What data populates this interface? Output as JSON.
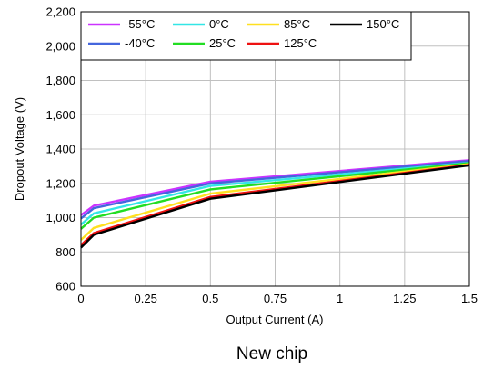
{
  "chart_data": {
    "type": "line",
    "xlabel": "Output Current (A)",
    "ylabel": "Dropout Voltage (V)",
    "caption": "New chip",
    "xlim": [
      0,
      1.5
    ],
    "ylim": [
      600,
      2200
    ],
    "x_ticks": [
      0,
      0.25,
      0.5,
      0.75,
      1,
      1.25,
      1.5
    ],
    "x_tick_labels": [
      "0",
      "0.25",
      "0.5",
      "0.75",
      "1",
      "1.25",
      "1.5"
    ],
    "y_ticks": [
      600,
      800,
      1000,
      1200,
      1400,
      1600,
      1800,
      2000,
      2200
    ],
    "y_tick_labels": [
      "600",
      "800",
      "1,000",
      "1,200",
      "1,400",
      "1,600",
      "1,800",
      "2,000",
      "2,200"
    ],
    "grid": true,
    "legend": "top",
    "x": [
      0,
      0.05,
      0.5,
      1.5
    ],
    "series": [
      {
        "name": "-55°C",
        "color": "#cc33ff",
        "values": [
          1015,
          1070,
          1210,
          1335
        ]
      },
      {
        "name": "-40°C",
        "color": "#4466dd",
        "values": [
          995,
          1055,
          1200,
          1330
        ]
      },
      {
        "name": "0°C",
        "color": "#33e6e6",
        "values": [
          960,
          1025,
          1185,
          1320
        ]
      },
      {
        "name": "25°C",
        "color": "#22dd22",
        "values": [
          935,
          1000,
          1165,
          1318
        ]
      },
      {
        "name": "85°C",
        "color": "#ffe020",
        "values": [
          870,
          940,
          1140,
          1312
        ]
      },
      {
        "name": "125°C",
        "color": "#ee1111",
        "values": [
          840,
          910,
          1120,
          1308
        ]
      },
      {
        "name": "150°C",
        "color": "#000000",
        "values": [
          825,
          900,
          1110,
          1305
        ]
      }
    ]
  }
}
